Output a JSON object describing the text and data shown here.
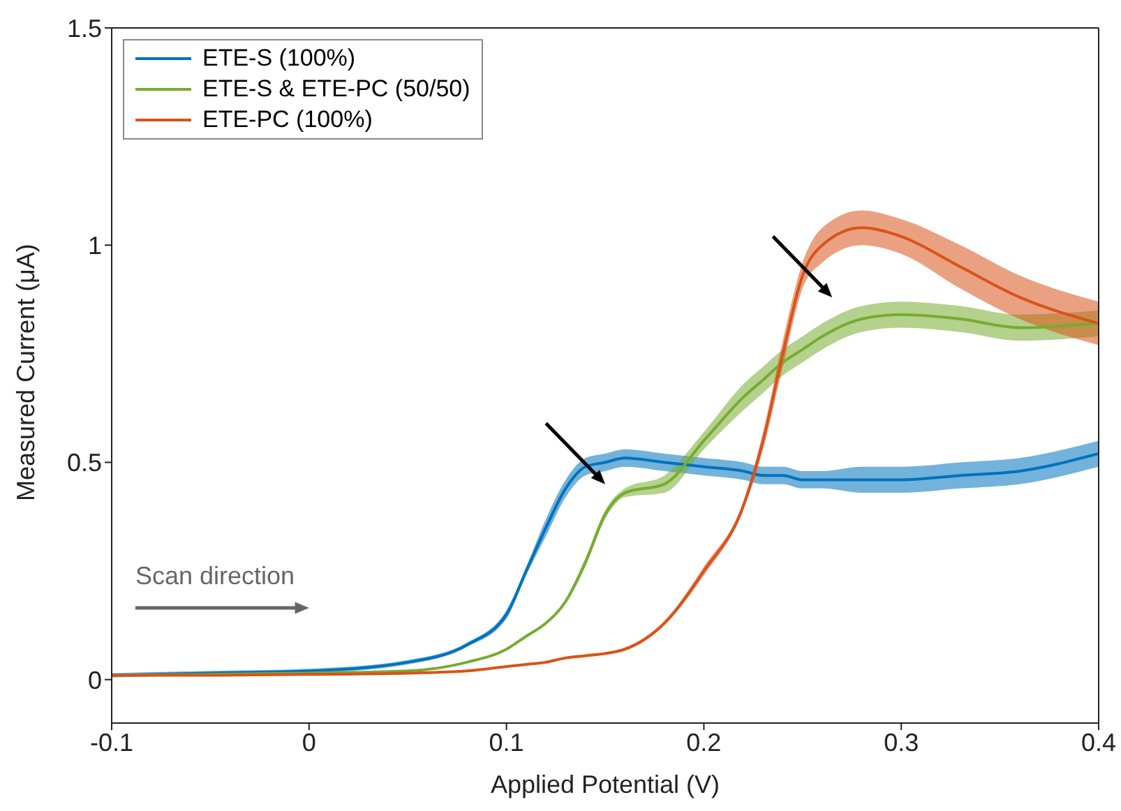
{
  "chart_data": {
    "type": "line",
    "xlabel": "Applied Potential (V)",
    "ylabel": "Measured Current (μA)",
    "x": [
      -0.1,
      -0.05,
      0,
      0.05,
      0.08,
      0.1,
      0.11,
      0.12,
      0.13,
      0.14,
      0.15,
      0.16,
      0.18,
      0.2,
      0.22,
      0.23,
      0.24,
      0.25,
      0.26,
      0.28,
      0.3,
      0.33,
      0.36,
      0.4
    ],
    "series": [
      {
        "name": "ETE-S (100%)",
        "color": "#0072bd",
        "values": [
          0.01,
          0.015,
          0.02,
          0.04,
          0.08,
          0.15,
          0.25,
          0.35,
          0.44,
          0.49,
          0.5,
          0.51,
          0.5,
          0.49,
          0.48,
          0.47,
          0.47,
          0.46,
          0.46,
          0.46,
          0.46,
          0.47,
          0.48,
          0.52
        ],
        "lower": [
          0.005,
          0.01,
          0.015,
          0.035,
          0.075,
          0.14,
          0.24,
          0.33,
          0.42,
          0.47,
          0.48,
          0.49,
          0.48,
          0.47,
          0.46,
          0.45,
          0.45,
          0.44,
          0.44,
          0.43,
          0.43,
          0.44,
          0.45,
          0.49
        ],
        "upper": [
          0.015,
          0.02,
          0.025,
          0.045,
          0.085,
          0.16,
          0.26,
          0.37,
          0.46,
          0.51,
          0.52,
          0.53,
          0.52,
          0.51,
          0.5,
          0.49,
          0.49,
          0.48,
          0.48,
          0.49,
          0.49,
          0.5,
          0.51,
          0.55
        ]
      },
      {
        "name": "ETE-S & ETE-PC (50/50)",
        "color": "#77ac30",
        "values": [
          0.01,
          0.012,
          0.015,
          0.02,
          0.04,
          0.07,
          0.1,
          0.13,
          0.18,
          0.27,
          0.38,
          0.43,
          0.45,
          0.55,
          0.65,
          0.69,
          0.73,
          0.76,
          0.79,
          0.83,
          0.84,
          0.83,
          0.81,
          0.82
        ],
        "lower": [
          0.008,
          0.01,
          0.013,
          0.018,
          0.038,
          0.067,
          0.097,
          0.127,
          0.175,
          0.26,
          0.37,
          0.42,
          0.43,
          0.53,
          0.62,
          0.66,
          0.7,
          0.73,
          0.76,
          0.8,
          0.81,
          0.8,
          0.78,
          0.79
        ],
        "upper": [
          0.012,
          0.014,
          0.017,
          0.022,
          0.042,
          0.073,
          0.103,
          0.133,
          0.185,
          0.28,
          0.39,
          0.44,
          0.47,
          0.57,
          0.68,
          0.72,
          0.76,
          0.79,
          0.82,
          0.86,
          0.87,
          0.86,
          0.84,
          0.85
        ]
      },
      {
        "name": "ETE-PC (100%)",
        "color": "#d95319",
        "values": [
          0.01,
          0.01,
          0.012,
          0.015,
          0.02,
          0.03,
          0.035,
          0.04,
          0.05,
          0.055,
          0.06,
          0.07,
          0.13,
          0.25,
          0.4,
          0.55,
          0.75,
          0.93,
          1,
          1.04,
          1.02,
          0.95,
          0.88,
          0.82
        ],
        "lower": [
          0.008,
          0.008,
          0.01,
          0.013,
          0.018,
          0.028,
          0.033,
          0.038,
          0.047,
          0.052,
          0.057,
          0.066,
          0.125,
          0.24,
          0.39,
          0.53,
          0.72,
          0.9,
          0.96,
          1,
          0.98,
          0.9,
          0.83,
          0.77
        ],
        "upper": [
          0.012,
          0.012,
          0.014,
          0.017,
          0.022,
          0.032,
          0.037,
          0.042,
          0.053,
          0.058,
          0.063,
          0.074,
          0.135,
          0.26,
          0.41,
          0.57,
          0.78,
          0.96,
          1.04,
          1.08,
          1.06,
          1,
          0.93,
          0.87
        ]
      }
    ],
    "xlim": [
      -0.1,
      0.4
    ],
    "xticks": [
      -0.1,
      0,
      0.1,
      0.2,
      0.3,
      0.4
    ],
    "ylim": [
      -0.1,
      1.5
    ],
    "yticks": [
      0,
      0.5,
      1,
      1.5
    ],
    "annotations": [
      "Scan direction"
    ],
    "legend": "top left",
    "marker": "none",
    "line_style": "solid"
  }
}
